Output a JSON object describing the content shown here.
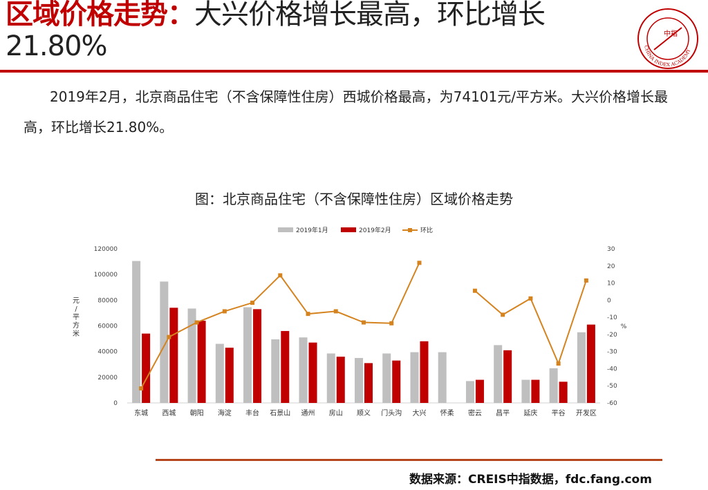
{
  "header": {
    "title_highlight": "区域价格走势：",
    "title_rest": "大兴价格增长最高，环比增长21.80%",
    "logo_text": "CHINA INDEX ACADEMY",
    "logo_center": "中指"
  },
  "body": {
    "paragraph": "2019年2月，北京商品住宅（不含保障性住房）西城价格最高，为74101元/平方米。大兴价格增长最高，环比增长21.80%。"
  },
  "footer": {
    "source": "数据来源：CREIS中指数据，fdc.fang.com"
  },
  "colors": {
    "accent": "#c00000",
    "bar_jan": "#bfbfbf",
    "bar_feb": "#c00000",
    "line": "#d4831f",
    "rule": "#b5451b"
  },
  "chart_data": {
    "type": "bar",
    "title": "图：北京商品住宅（不含保障性住房）区域价格走势",
    "categories": [
      "东城",
      "西城",
      "朝阳",
      "海淀",
      "丰台",
      "石景山",
      "通州",
      "房山",
      "顺义",
      "门头沟",
      "大兴",
      "怀柔",
      "密云",
      "昌平",
      "延庆",
      "平谷",
      "开发区"
    ],
    "series": [
      {
        "name": "2019年1月",
        "type": "bar",
        "axis": "left",
        "values": [
          110500,
          94500,
          73500,
          46000,
          74500,
          49500,
          51000,
          38500,
          35000,
          38500,
          39500,
          39500,
          17000,
          45000,
          18000,
          27000,
          55000
        ]
      },
      {
        "name": "2019年2月",
        "type": "bar",
        "axis": "left",
        "values": [
          54000,
          74101,
          64000,
          43000,
          73000,
          56000,
          47000,
          36000,
          31000,
          33000,
          48000,
          null,
          18000,
          41000,
          18000,
          16500,
          61000
        ]
      },
      {
        "name": "环比",
        "type": "line",
        "axis": "right",
        "values": [
          -51.5,
          -21.5,
          -13,
          -6.5,
          -1.5,
          14.5,
          -8,
          -6.5,
          -13,
          -13.5,
          21.8,
          null,
          5.5,
          -8.5,
          1,
          -37,
          11.5
        ]
      }
    ],
    "yleft": {
      "label": "元/平方米",
      "ylim": [
        0,
        120000
      ],
      "ticks": [
        "0",
        "20000",
        "40000",
        "60000",
        "80000",
        "100000",
        "120000"
      ]
    },
    "yright": {
      "label": "%",
      "ylim": [
        -60,
        30
      ],
      "ticks": [
        "-60",
        "-50",
        "-40",
        "-30",
        "-20",
        "-10",
        "0",
        "10",
        "20",
        "30"
      ]
    },
    "legend": "top-center",
    "grid": false
  }
}
